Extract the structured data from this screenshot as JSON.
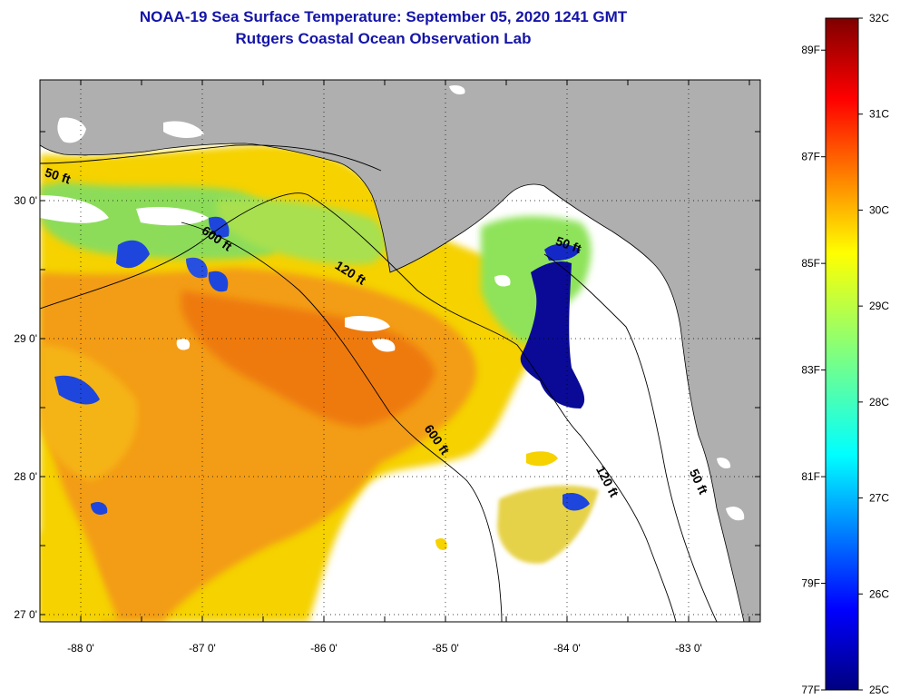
{
  "title_line1": "NOAA-19 Sea Surface Temperature:  September 05, 2020 1241 GMT",
  "title_line2": "Rutgers Coastal Ocean Observation Lab",
  "map": {
    "lat_ticks": [
      {
        "value": 27,
        "label": "27 0'"
      },
      {
        "value": 28,
        "label": "28 0'"
      },
      {
        "value": 29,
        "label": "29 0'"
      },
      {
        "value": 30,
        "label": "30 0'"
      }
    ],
    "lon_ticks": [
      {
        "value": -88,
        "label": "-88 0'"
      },
      {
        "value": -87,
        "label": "-87 0'"
      },
      {
        "value": -86,
        "label": "-86 0'"
      },
      {
        "value": -85,
        "label": "-85 0'"
      },
      {
        "value": -84,
        "label": "-84 0'"
      },
      {
        "value": -83,
        "label": "-83 0'"
      }
    ],
    "contour_labels": [
      {
        "text": "50 ft",
        "lon": -88.2,
        "lat": 30.15
      },
      {
        "text": "600 ft",
        "lon": -86.9,
        "lat": 29.7
      },
      {
        "text": "120 ft",
        "lon": -85.8,
        "lat": 29.45
      },
      {
        "text": "50 ft",
        "lon": -84.0,
        "lat": 29.65
      },
      {
        "text": "600 ft",
        "lon": -85.1,
        "lat": 28.25
      },
      {
        "text": "120 ft",
        "lon": -83.7,
        "lat": 27.95
      },
      {
        "text": "50 ft",
        "lon": -82.95,
        "lat": 27.95
      }
    ],
    "colors": {
      "land": "#afafaf",
      "no_data": "#ffffff",
      "contour": "#000000"
    }
  },
  "colorbar": {
    "celsius_labels": [
      "32C",
      "31C",
      "30C",
      "29C",
      "28C",
      "27C",
      "26C",
      "25C"
    ],
    "fahrenheit_labels": [
      "89F",
      "87F",
      "85F",
      "83F",
      "81F",
      "79F",
      "77F"
    ],
    "range_c": [
      25,
      32
    ],
    "range_f": [
      77,
      89.6
    ]
  }
}
